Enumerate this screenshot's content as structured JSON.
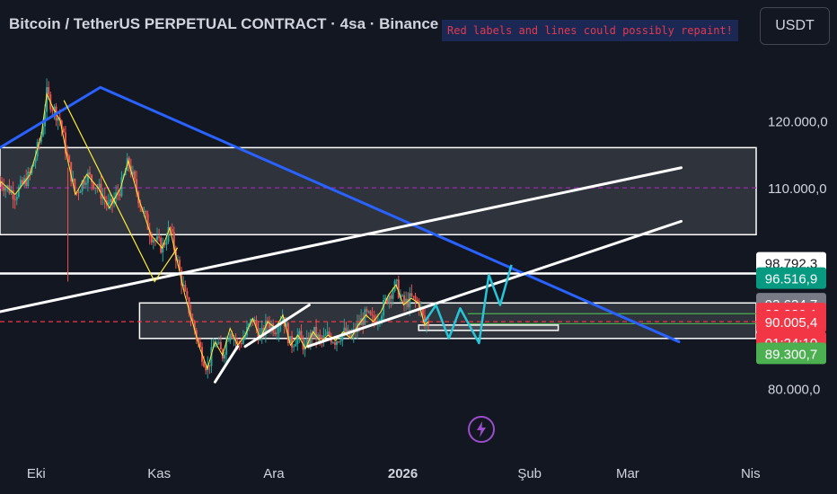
{
  "title": "Bitcoin / TetherUS PERPETUAL CONTRACT · 4sa · Binance",
  "warning": "Red labels and lines could possibly repaint!",
  "currency_button": "USDT",
  "flash_icon": "lightning-bolt-icon",
  "chart_data": {
    "type": "candlestick",
    "symbol": "Bitcoin / TetherUS PERPETUAL CONTRACT",
    "interval": "4sa",
    "exchange": "Binance",
    "x_ticks": [
      "Eki",
      "Kas",
      "Ara",
      "2026",
      "Şub",
      "Mar",
      "Nis"
    ],
    "y_ticks": [
      "120.000,0",
      "110.000,0",
      "80.000,0"
    ],
    "y_range": [
      75000,
      130000
    ],
    "x_range": [
      0,
      1
    ],
    "price_labels": [
      {
        "text": "98.792,3",
        "bg": "#ffffff",
        "fg": "#131722"
      },
      {
        "text": "96.516,9",
        "bg": "#089981",
        "fg": "#ffffff"
      },
      {
        "text": "93.634,7",
        "bg": "#787b86",
        "fg": "#ffffff"
      },
      {
        "text": "92.469,2",
        "bg": "#4caf50",
        "fg": "#ffffff"
      },
      {
        "text": "92.280,1",
        "bg": "#f23645",
        "fg": "#ffffff"
      },
      {
        "text": "90.005,4",
        "bg": "#f23645",
        "fg": "#ffffff"
      },
      {
        "text": "01:24:10",
        "bg": "#f23645",
        "fg": "#ffffff"
      },
      {
        "text": "89.300,7",
        "bg": "#4caf50",
        "fg": "#ffffff"
      }
    ],
    "close_path": [
      [
        0.0,
        111000
      ],
      [
        0.02,
        109000
      ],
      [
        0.04,
        112000
      ],
      [
        0.055,
        118000
      ],
      [
        0.062,
        124000
      ],
      [
        0.07,
        122000
      ],
      [
        0.08,
        120000
      ],
      [
        0.09,
        114000
      ],
      [
        0.1,
        109000
      ],
      [
        0.115,
        112000
      ],
      [
        0.13,
        110000
      ],
      [
        0.145,
        107000
      ],
      [
        0.16,
        110000
      ],
      [
        0.17,
        114000
      ],
      [
        0.185,
        108000
      ],
      [
        0.2,
        103000
      ],
      [
        0.215,
        101000
      ],
      [
        0.225,
        104000
      ],
      [
        0.235,
        99000
      ],
      [
        0.245,
        94000
      ],
      [
        0.255,
        90000
      ],
      [
        0.265,
        86000
      ],
      [
        0.275,
        83000
      ],
      [
        0.285,
        87000
      ],
      [
        0.295,
        85000
      ],
      [
        0.305,
        89000
      ],
      [
        0.315,
        86500
      ],
      [
        0.325,
        88000
      ],
      [
        0.335,
        90500
      ],
      [
        0.345,
        87500
      ],
      [
        0.355,
        90000
      ],
      [
        0.365,
        89000
      ],
      [
        0.375,
        91000
      ],
      [
        0.385,
        86500
      ],
      [
        0.395,
        88000
      ],
      [
        0.405,
        86000
      ],
      [
        0.415,
        88500
      ],
      [
        0.425,
        87000
      ],
      [
        0.435,
        88000
      ],
      [
        0.445,
        87200
      ],
      [
        0.455,
        88500
      ],
      [
        0.465,
        87500
      ],
      [
        0.475,
        89500
      ],
      [
        0.485,
        91000
      ],
      [
        0.495,
        90000
      ],
      [
        0.505,
        91500
      ],
      [
        0.515,
        94000
      ],
      [
        0.525,
        95500
      ],
      [
        0.535,
        92500
      ],
      [
        0.545,
        93500
      ],
      [
        0.555,
        92800
      ],
      [
        0.563,
        89500
      ],
      [
        0.568,
        90000
      ]
    ],
    "trend_lines": [
      {
        "color": "#2962ff",
        "points": [
          [
            0.0,
            116000
          ],
          [
            0.133,
            125000
          ],
          [
            0.9,
            87000
          ]
        ]
      },
      {
        "color": "#ffffff",
        "points": [
          [
            0.0,
            91500
          ],
          [
            0.903,
            113000
          ]
        ]
      },
      {
        "color": "#ffffff",
        "points": [
          [
            0.408,
            86300
          ],
          [
            0.903,
            105000
          ]
        ]
      },
      {
        "color": "#ffffff",
        "points": [
          [
            0.285,
            81000
          ],
          [
            0.315,
            86300
          ]
        ]
      },
      {
        "color": "#ffffff",
        "points": [
          [
            0.325,
            86300
          ],
          [
            0.41,
            92500
          ]
        ]
      },
      {
        "color": "#ffeb3b",
        "points": [
          [
            0.085,
            123000
          ],
          [
            0.205,
            96000
          ],
          [
            0.235,
            101000
          ]
        ]
      }
    ],
    "projection": [
      [
        0.563,
        90000
      ],
      [
        0.578,
        92500
      ],
      [
        0.595,
        87500
      ],
      [
        0.61,
        92000
      ],
      [
        0.635,
        86800
      ],
      [
        0.648,
        97000
      ],
      [
        0.663,
        92500
      ],
      [
        0.678,
        98500
      ]
    ],
    "zones": [
      {
        "from": 103000,
        "to": 116000
      },
      {
        "from": 87500,
        "to": 92800
      },
      {
        "from": 88700,
        "to": 89500
      }
    ],
    "horizontal_lines": [
      {
        "price": 97200,
        "color": "#ffffff"
      },
      {
        "price": 91200,
        "color": "#4caf50"
      },
      {
        "price": 89700,
        "color": "#4caf50"
      },
      {
        "price": 110000,
        "color": "#9c27b0"
      },
      {
        "price": 90005,
        "color": "#f23645"
      }
    ],
    "grid": false
  }
}
